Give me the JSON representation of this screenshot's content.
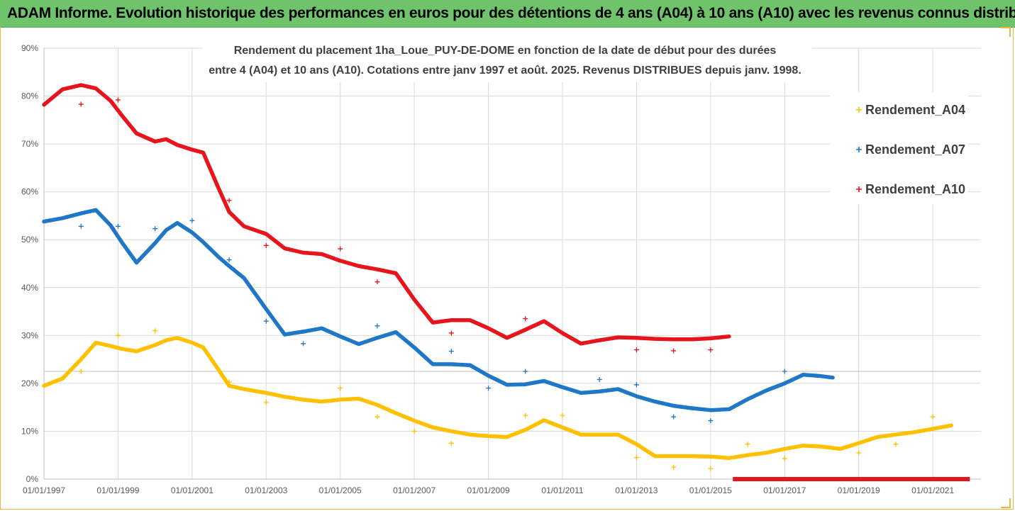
{
  "banner": {
    "title": "ADAM Informe. Evolution historique des performances en euros pour des détentions de 4 ans (A04) à 10 ans (A10) avec les revenus connus distribués"
  },
  "chart_data": {
    "type": "scatter",
    "title_line1": "Rendement du placement 1ha_Loue_PUY-DE-DOME en fonction de la date de début pour des durées",
    "title_line2": "entre 4 (A04) et 10 ans (A10). Cotations entre janv 1997 et août. 2025. Revenus DISTRIBUES depuis janv. 1998.",
    "ylim": [
      0,
      90
    ],
    "xlim": [
      1997.0,
      2022.3
    ],
    "y_ticks": [
      "0%",
      "10%",
      "20%",
      "30%",
      "40%",
      "50%",
      "60%",
      "70%",
      "80%",
      "90%"
    ],
    "y_tick_values": [
      0,
      10,
      20,
      30,
      40,
      50,
      60,
      70,
      80,
      90
    ],
    "x_ticks": [
      "01/01/1997",
      "01/01/1999",
      "01/01/2001",
      "01/01/2003",
      "01/01/2005",
      "01/01/2007",
      "01/01/2009",
      "01/01/2011",
      "01/01/2013",
      "01/01/2015",
      "01/01/2017",
      "01/01/2019",
      "01/01/2021"
    ],
    "x_tick_values": [
      1997,
      1999,
      2001,
      2003,
      2005,
      2007,
      2009,
      2011,
      2013,
      2015,
      2017,
      2019,
      2021
    ],
    "grid": true,
    "legend_position": "right",
    "series": [
      {
        "name": "Rendement_A04",
        "color": "#ffc000",
        "x": [
          1997.0,
          1997.5,
          1998.0,
          1998.4,
          1998.8,
          1999.1,
          1999.5,
          2000.0,
          2000.3,
          2000.6,
          2001.0,
          2001.3,
          2001.7,
          2002.0,
          2002.4,
          2003.0,
          2003.5,
          2004.0,
          2004.5,
          2005.0,
          2005.5,
          2006.0,
          2006.5,
          2007.0,
          2007.5,
          2008.0,
          2008.5,
          2009.0,
          2009.5,
          2010.0,
          2010.5,
          2011.0,
          2011.5,
          2012.0,
          2012.5,
          2013.0,
          2013.5,
          2014.0,
          2014.5,
          2015.0,
          2015.5,
          2016.0,
          2016.5,
          2017.0,
          2017.5,
          2018.0,
          2018.5,
          2019.0,
          2019.5,
          2020.0,
          2020.5,
          2021.0,
          2021.5
        ],
        "y": [
          19.5,
          21.0,
          25.0,
          28.5,
          27.8,
          27.2,
          26.7,
          28.0,
          29.0,
          29.5,
          28.5,
          27.5,
          23.0,
          19.5,
          18.8,
          18.0,
          17.2,
          16.6,
          16.2,
          16.6,
          16.8,
          15.5,
          13.8,
          12.2,
          10.8,
          10.0,
          9.3,
          9.0,
          8.8,
          10.3,
          12.3,
          10.8,
          9.3,
          9.3,
          9.3,
          7.3,
          4.8,
          4.8,
          4.8,
          4.7,
          4.4,
          5.0,
          5.5,
          6.3,
          7.0,
          6.8,
          6.3,
          7.5,
          8.8,
          9.3,
          9.8,
          10.5,
          11.2
        ],
        "outliers_x": [
          1998.0,
          1999.0,
          2000.0,
          2002.0,
          2003.0,
          2005.0,
          2006.0,
          2007.0,
          2008.0,
          2010.0,
          2011.0,
          2013.0,
          2014.0,
          2015.0,
          2016.0,
          2017.0,
          2019.0,
          2020.0,
          2021.0
        ],
        "outliers_y": [
          22.5,
          30.0,
          31.0,
          20.3,
          16.0,
          19.0,
          13.0,
          10.0,
          7.5,
          13.3,
          13.3,
          4.5,
          2.5,
          2.2,
          7.3,
          4.3,
          5.5,
          7.3,
          13.0
        ]
      },
      {
        "name": "Rendement_A07",
        "color": "#1f77c8",
        "x": [
          1997.0,
          1997.5,
          1998.0,
          1998.4,
          1998.8,
          1999.1,
          1999.5,
          2000.0,
          2000.3,
          2000.6,
          2001.0,
          2001.3,
          2001.7,
          2002.0,
          2002.4,
          2003.0,
          2003.5,
          2004.0,
          2004.5,
          2005.0,
          2005.5,
          2006.0,
          2006.5,
          2007.0,
          2007.5,
          2008.0,
          2008.5,
          2009.0,
          2009.5,
          2010.0,
          2010.5,
          2011.0,
          2011.5,
          2012.0,
          2012.5,
          2013.0,
          2013.5,
          2014.0,
          2014.5,
          2015.0,
          2015.5,
          2016.0,
          2016.5,
          2017.0,
          2017.5,
          2018.0,
          2018.3
        ],
        "y": [
          53.8,
          54.5,
          55.5,
          56.2,
          53.0,
          49.5,
          45.2,
          49.3,
          52.0,
          53.5,
          51.5,
          49.5,
          46.5,
          44.5,
          42.0,
          35.5,
          30.2,
          30.8,
          31.5,
          29.8,
          28.2,
          29.5,
          30.7,
          27.5,
          24.0,
          24.0,
          23.8,
          21.6,
          19.7,
          19.8,
          20.5,
          19.2,
          18.0,
          18.3,
          18.8,
          17.3,
          16.2,
          15.3,
          14.8,
          14.4,
          14.6,
          16.7,
          18.5,
          20.0,
          21.8,
          21.5,
          21.2
        ],
        "outliers_x": [
          1998.0,
          1999.0,
          2000.0,
          2001.0,
          2002.0,
          2003.0,
          2004.0,
          2006.0,
          2008.0,
          2009.0,
          2010.0,
          2012.0,
          2013.0,
          2014.0,
          2015.0,
          2017.0
        ],
        "outliers_y": [
          52.8,
          52.8,
          52.3,
          54.0,
          45.8,
          33.0,
          28.3,
          32.0,
          26.7,
          19.0,
          22.5,
          20.8,
          19.7,
          13.0,
          12.2,
          22.5
        ]
      },
      {
        "name": "Rendement_A10",
        "color": "#e8141b",
        "x": [
          1997.0,
          1997.5,
          1998.0,
          1998.4,
          1998.8,
          1999.1,
          1999.5,
          2000.0,
          2000.3,
          2000.6,
          2001.0,
          2001.3,
          2001.7,
          2002.0,
          2002.4,
          2003.0,
          2003.5,
          2004.0,
          2004.5,
          2005.0,
          2005.5,
          2006.0,
          2006.5,
          2007.0,
          2007.5,
          2008.0,
          2008.5,
          2009.0,
          2009.5,
          2010.0,
          2010.5,
          2011.0,
          2011.5,
          2012.0,
          2012.5,
          2013.0,
          2013.5,
          2014.0,
          2014.5,
          2015.0,
          2015.5
        ],
        "y": [
          78.2,
          81.4,
          82.3,
          81.6,
          79.0,
          76.0,
          72.2,
          70.5,
          71.0,
          69.8,
          68.8,
          68.2,
          61.0,
          55.8,
          52.8,
          51.2,
          48.2,
          47.3,
          47.0,
          45.6,
          44.5,
          43.8,
          43.0,
          37.5,
          32.7,
          33.2,
          33.2,
          31.5,
          29.5,
          31.2,
          33.0,
          30.5,
          28.3,
          29.0,
          29.6,
          29.5,
          29.3,
          29.2,
          29.2,
          29.4,
          29.8
        ],
        "outliers_x": [
          1998.0,
          1999.0,
          2002.0,
          2003.0,
          2005.0,
          2006.0,
          2008.0,
          2010.0,
          2013.0,
          2014.0,
          2015.0
        ],
        "outliers_y": [
          78.3,
          79.2,
          58.2,
          48.8,
          48.1,
          41.2,
          30.5,
          33.5,
          27.0,
          26.8,
          27.0
        ],
        "zero_segment_x": [
          2015.6,
          2022.0
        ],
        "zero_segment_y": 0
      }
    ]
  }
}
